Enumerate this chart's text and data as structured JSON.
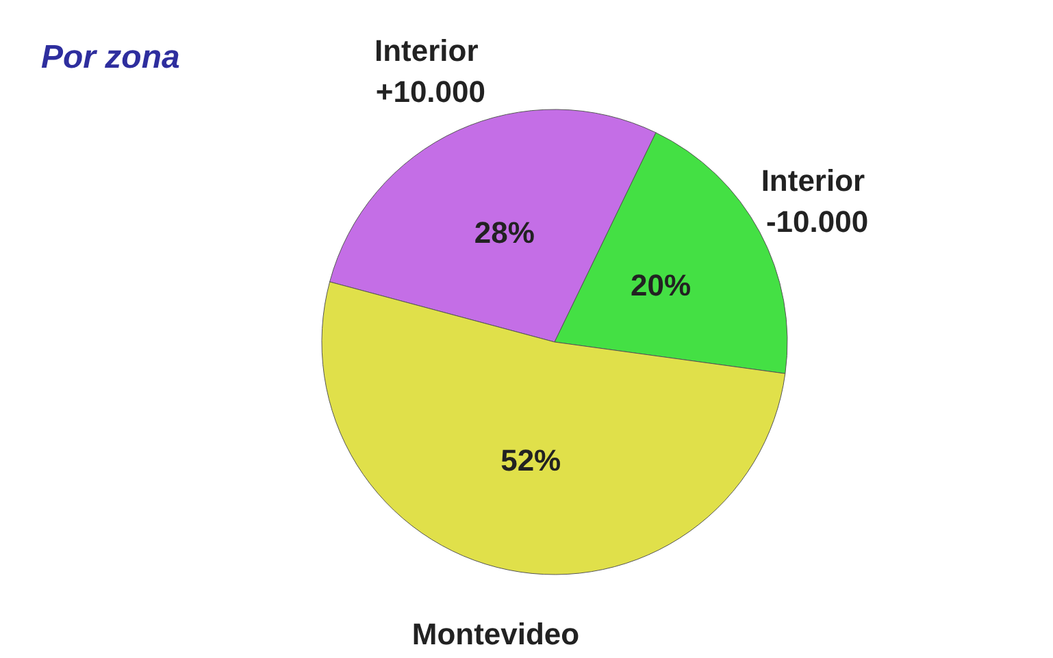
{
  "chart_data": {
    "type": "pie",
    "title": "Por zona",
    "categories": [
      "Interior +10.000",
      "Interior -10.000",
      "Montevideo"
    ],
    "values": [
      28,
      20,
      52
    ],
    "colors": [
      "#c46ee6",
      "#44e044",
      "#e0e04a"
    ],
    "value_labels": [
      "28%",
      "20%",
      "52%"
    ]
  }
}
